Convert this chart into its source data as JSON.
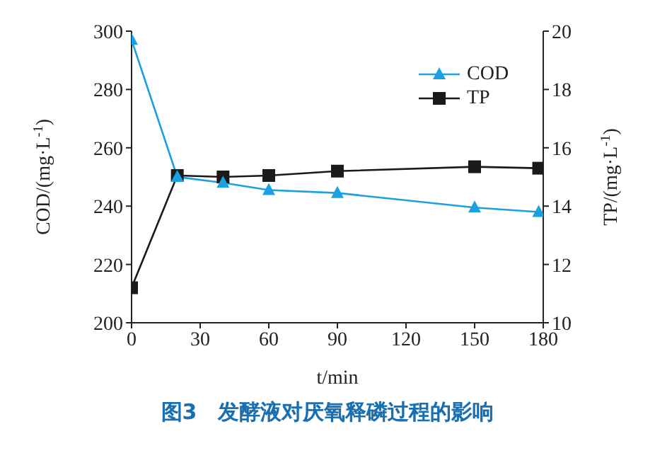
{
  "chart_data": {
    "type": "line",
    "title": "图3　发酵液对厌氧释磷过程的影响",
    "xlabel": "t/min",
    "ylabel": "COD/(mg·L$^{-1}$)",
    "y2label": "TP/(mg·L$^{-1}$)",
    "x": [
      0,
      20,
      40,
      60,
      90,
      150,
      178
    ],
    "series": [
      {
        "name": "COD",
        "color": "#1ba1e2",
        "marker": "triangle",
        "values": [
          297,
          250,
          248,
          245.5,
          244.5,
          239.5,
          238
        ]
      },
      {
        "name": "TP",
        "color": "#1a1a1a",
        "marker": "square",
        "axis": "y2",
        "values": [
          11.2,
          15.05,
          15.0,
          15.05,
          15.2,
          15.35,
          15.3
        ]
      }
    ],
    "xlim": [
      0,
      180
    ],
    "xticks": [
      0,
      30,
      60,
      90,
      120,
      150,
      180
    ],
    "ylim": [
      200,
      300
    ],
    "yticks": [
      200,
      220,
      240,
      260,
      280,
      300
    ],
    "y2lim": [
      10,
      20
    ],
    "y2ticks": [
      10,
      12,
      14,
      16,
      18,
      20
    ],
    "grid": false,
    "legend": "top right",
    "line_style": "solid"
  }
}
